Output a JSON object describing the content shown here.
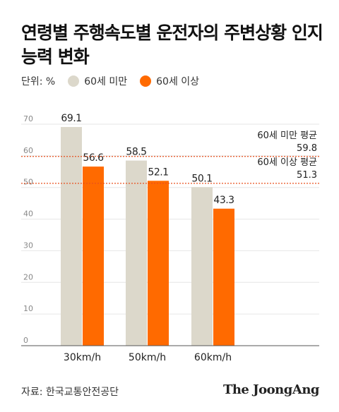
{
  "header": {
    "title": "연령별 주행속도별 운전자의 주변상황 인지능력 변화"
  },
  "legend": {
    "unit": "단위: %",
    "entries": [
      {
        "label": "60세 미만",
        "color": "#dcd8cb"
      },
      {
        "label": "60세 이상",
        "color": "#ff6a00"
      }
    ]
  },
  "chart_data": {
    "type": "bar",
    "categories": [
      "30km/h",
      "50km/h",
      "60km/h"
    ],
    "series": [
      {
        "name": "60세 미만",
        "values": [
          69.1,
          58.5,
          50.1
        ],
        "labels": [
          "69.1",
          "58.5",
          "50.1"
        ],
        "color": "#dcd8cb"
      },
      {
        "name": "60세 이상",
        "values": [
          56.6,
          52.1,
          43.3
        ],
        "labels": [
          "56.6",
          "52.1",
          "43.3"
        ],
        "color": "#ff6a00"
      }
    ],
    "ylim": [
      0,
      70
    ],
    "yticks": [
      0,
      10,
      20,
      30,
      40,
      50,
      60,
      70
    ],
    "grid": true,
    "reference_lines": [
      {
        "label": "60세 미만 평균",
        "value": 59.8,
        "value_label": "59.8"
      },
      {
        "label": "60세 이상 평균",
        "value": 51.3,
        "value_label": "51.3"
      }
    ],
    "reference_line_color": "#e8501e"
  },
  "footer": {
    "source": "자료: 한국교통안전공단",
    "brand": "The JoongAng"
  }
}
